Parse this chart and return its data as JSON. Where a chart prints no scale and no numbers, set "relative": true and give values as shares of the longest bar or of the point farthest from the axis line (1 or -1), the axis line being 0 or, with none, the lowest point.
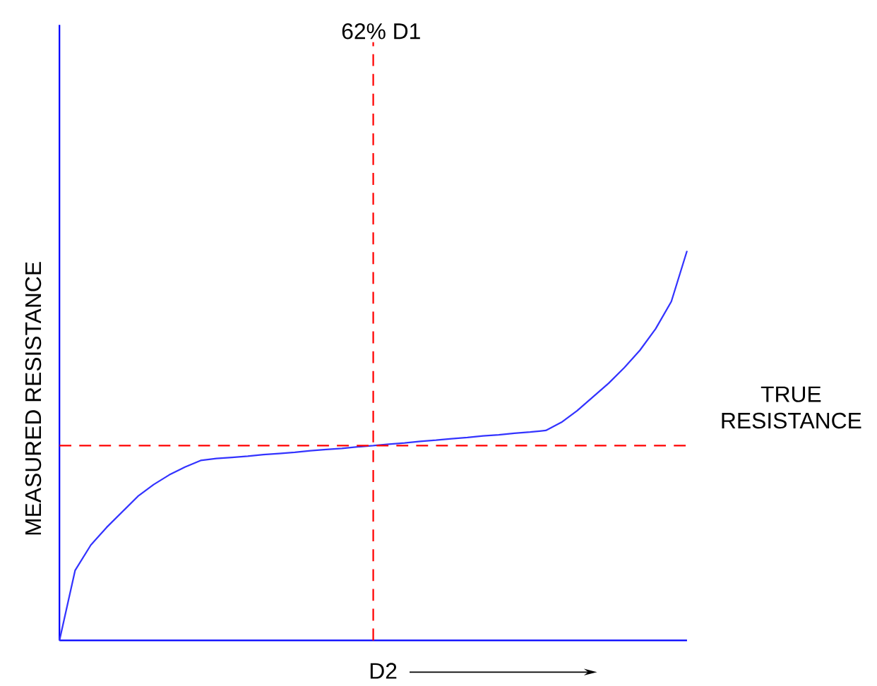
{
  "chart_data": {
    "type": "line",
    "relative": true,
    "tick_labels": false,
    "marker": "none",
    "line_style": "solid",
    "xlabel": "D2",
    "ylabel": "MEASURED RESISTANCE",
    "annotations": [
      "62%  D1"
    ],
    "categories": [
      null,
      null,
      null,
      null,
      null,
      null,
      null,
      null,
      null,
      null,
      null,
      null,
      null,
      null,
      null,
      null,
      null,
      null,
      null,
      null,
      null,
      null,
      null,
      null,
      null,
      null,
      null,
      null,
      null,
      null,
      null,
      null,
      null,
      null,
      null,
      null,
      null,
      null,
      null,
      null,
      null
    ],
    "series": [
      {
        "color": "#3333ff",
        "values": [
          0,
          0.18,
          0.245,
          0.29,
          0.33,
          0.37,
          0.4,
          0.425,
          0.445,
          0.462,
          0.467,
          0.47,
          0.473,
          0.477,
          0.48,
          0.483,
          0.487,
          0.49,
          0.493,
          0.497,
          0.5,
          0.504,
          0.507,
          0.511,
          0.514,
          0.518,
          0.521,
          0.525,
          0.528,
          0.532,
          0.535,
          0.539,
          0.56,
          0.59,
          0.625,
          0.66,
          0.7,
          0.745,
          0.8,
          0.87,
          1
        ]
      }
    ],
    "ref_lines": [
      {
        "axis": "y",
        "value": 0.5,
        "label": "TRUE RESISTANCE",
        "color": "#ff0000",
        "line_style": "dashed"
      }
    ]
  }
}
